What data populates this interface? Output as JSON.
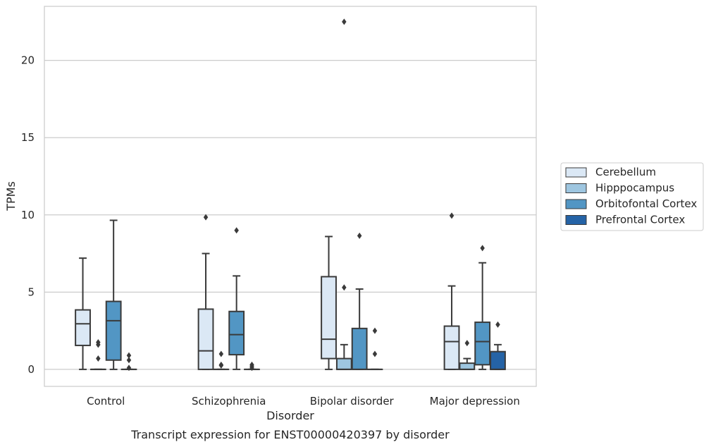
{
  "chart_data": {
    "type": "box",
    "caption": "Transcript expression for ENST00000420397 by disorder",
    "xlabel": "Disorder",
    "ylabel": "TPMs",
    "ylim": [
      -1.1,
      23.5
    ],
    "yticks": [
      0,
      5,
      10,
      15,
      20
    ],
    "grid": "horizontal",
    "legend_position": "right",
    "categories": [
      "Control",
      "Schizophrenia",
      "Bipolar disorder",
      "Major depression"
    ],
    "series": [
      {
        "name": "Cerebellum",
        "color": "#dbe8f5",
        "boxes": [
          {
            "q1": 1.55,
            "median": 2.95,
            "q3": 3.85,
            "whisker_low": 0,
            "whisker_high": 7.2,
            "outliers": []
          },
          {
            "q1": 0,
            "median": 1.2,
            "q3": 3.9,
            "whisker_low": 0,
            "whisker_high": 7.5,
            "outliers": [
              9.85
            ]
          },
          {
            "q1": 0.7,
            "median": 1.95,
            "q3": 6.0,
            "whisker_low": 0,
            "whisker_high": 8.6,
            "outliers": []
          },
          {
            "q1": 0,
            "median": 1.8,
            "q3": 2.8,
            "whisker_low": 0,
            "whisker_high": 5.4,
            "outliers": [
              9.95
            ]
          }
        ]
      },
      {
        "name": "Hipppocampus",
        "color": "#9ec6e0",
        "boxes": [
          {
            "q1": 0,
            "median": 0,
            "q3": 0,
            "whisker_low": 0,
            "whisker_high": 0,
            "outliers": [
              0.7,
              1.6,
              1.75
            ]
          },
          {
            "q1": 0,
            "median": 0,
            "q3": 0,
            "whisker_low": 0,
            "whisker_high": 0,
            "outliers": [
              0.25,
              0.3,
              1.0
            ]
          },
          {
            "q1": 0,
            "median": 0,
            "q3": 0.7,
            "whisker_low": 0,
            "whisker_high": 1.6,
            "outliers": [
              5.3,
              22.5
            ]
          },
          {
            "q1": 0,
            "median": 0,
            "q3": 0.4,
            "whisker_low": 0,
            "whisker_high": 0.7,
            "outliers": [
              1.7
            ]
          }
        ]
      },
      {
        "name": "Orbitofontal Cortex",
        "color": "#5296c4",
        "boxes": [
          {
            "q1": 0.6,
            "median": 3.15,
            "q3": 4.4,
            "whisker_low": 0,
            "whisker_high": 9.65,
            "outliers": []
          },
          {
            "q1": 0.95,
            "median": 2.25,
            "q3": 3.75,
            "whisker_low": 0,
            "whisker_high": 6.05,
            "outliers": [
              9.0
            ]
          },
          {
            "q1": 0,
            "median": 0,
            "q3": 2.65,
            "whisker_low": 0,
            "whisker_high": 5.2,
            "outliers": [
              8.65
            ]
          },
          {
            "q1": 0.3,
            "median": 1.8,
            "q3": 3.05,
            "whisker_low": 0,
            "whisker_high": 6.9,
            "outliers": [
              7.85
            ]
          }
        ]
      },
      {
        "name": "Prefrontal Cortex",
        "color": "#2563a6",
        "boxes": [
          {
            "q1": 0,
            "median": 0,
            "q3": 0,
            "whisker_low": 0,
            "whisker_high": 0,
            "outliers": [
              0.1,
              0.6,
              0.9
            ]
          },
          {
            "q1": 0,
            "median": 0,
            "q3": 0,
            "whisker_low": 0,
            "whisker_high": 0,
            "outliers": [
              0.1,
              0.2,
              0.3
            ]
          },
          {
            "q1": 0,
            "median": 0,
            "q3": 0,
            "whisker_low": 0,
            "whisker_high": 0,
            "outliers": [
              1.0,
              2.5
            ]
          },
          {
            "q1": 0,
            "median": 0,
            "q3": 1.15,
            "whisker_low": 0,
            "whisker_high": 1.6,
            "outliers": [
              2.9
            ]
          }
        ]
      }
    ]
  }
}
